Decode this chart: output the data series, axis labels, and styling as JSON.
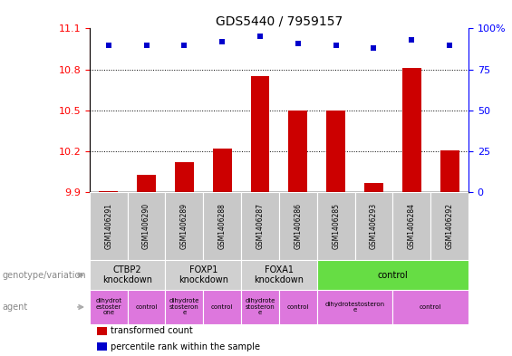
{
  "title": "GDS5440 / 7959157",
  "samples": [
    "GSM1406291",
    "GSM1406290",
    "GSM1406289",
    "GSM1406288",
    "GSM1406287",
    "GSM1406286",
    "GSM1406285",
    "GSM1406293",
    "GSM1406284",
    "GSM1406292"
  ],
  "bar_values": [
    9.91,
    10.03,
    10.12,
    10.22,
    10.75,
    10.5,
    10.5,
    9.97,
    10.81,
    10.21
  ],
  "percentile_values": [
    90,
    90,
    90,
    92,
    95,
    91,
    90,
    88,
    93,
    90
  ],
  "ylim_left": [
    9.9,
    11.1
  ],
  "ylim_right": [
    0,
    100
  ],
  "yticks_left": [
    9.9,
    10.2,
    10.5,
    10.8,
    11.1
  ],
  "yticks_right": [
    0,
    25,
    50,
    75,
    100
  ],
  "bar_color": "#cc0000",
  "dot_color": "#0000cc",
  "genotype_groups": [
    {
      "label": "CTBP2\nknockdown",
      "start": 0,
      "end": 2,
      "color": "#d0d0d0"
    },
    {
      "label": "FOXP1\nknockdown",
      "start": 2,
      "end": 4,
      "color": "#d0d0d0"
    },
    {
      "label": "FOXA1\nknockdown",
      "start": 4,
      "end": 6,
      "color": "#d0d0d0"
    },
    {
      "label": "control",
      "start": 6,
      "end": 10,
      "color": "#66dd44"
    }
  ],
  "agent_groups": [
    {
      "label": "dihydrot\nestoster\none",
      "start": 0,
      "end": 1
    },
    {
      "label": "control",
      "start": 1,
      "end": 2
    },
    {
      "label": "dihydrote\nstosteron\ne",
      "start": 2,
      "end": 3
    },
    {
      "label": "control",
      "start": 3,
      "end": 4
    },
    {
      "label": "dihydrote\nstosteron\ne",
      "start": 4,
      "end": 5
    },
    {
      "label": "control",
      "start": 5,
      "end": 6
    },
    {
      "label": "dihydrotestosteron\ne",
      "start": 6,
      "end": 8
    },
    {
      "label": "control",
      "start": 8,
      "end": 10
    }
  ],
  "agent_color": "#dd77dd",
  "legend_bar_label": "transformed count",
  "legend_dot_label": "percentile rank within the sample",
  "left_label_geno": "genotype/variation",
  "left_label_agent": "agent"
}
